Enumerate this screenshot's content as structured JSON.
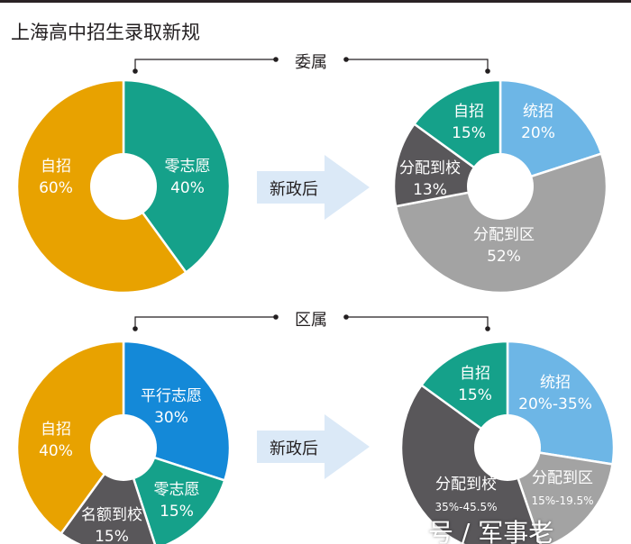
{
  "title": "上海高中招生录取新规",
  "arrow_label": "新政后",
  "watermark": "号 / 军事老",
  "sections": [
    {
      "label": "委属"
    },
    {
      "label": "区属"
    }
  ],
  "colors": {
    "orange": "#E8A200",
    "teal": "#15A18A",
    "light_blue": "#6DB6E6",
    "gray": "#A3A3A3",
    "dark_gray": "#59575A",
    "blue": "#1489D8"
  },
  "chart_data": [
    {
      "type": "pie",
      "donut": true,
      "section": "委属",
      "stage": "before",
      "slices": [
        {
          "label": "零志愿",
          "value": 40,
          "text": "40%",
          "color": "#15A18A"
        },
        {
          "label": "自招",
          "value": 60,
          "text": "60%",
          "color": "#E8A200"
        }
      ]
    },
    {
      "type": "pie",
      "donut": true,
      "section": "委属",
      "stage": "新政后",
      "slices": [
        {
          "label": "统招",
          "value": 20,
          "text": "20%",
          "color": "#6DB6E6"
        },
        {
          "label": "分配到区",
          "value": 52,
          "text": "52%",
          "color": "#A3A3A3"
        },
        {
          "label": "分配到校",
          "value": 13,
          "text": "13%",
          "color": "#59575A"
        },
        {
          "label": "自招",
          "value": 15,
          "text": "15%",
          "color": "#15A18A"
        }
      ]
    },
    {
      "type": "pie",
      "donut": true,
      "section": "区属",
      "stage": "before",
      "slices": [
        {
          "label": "平行志愿",
          "value": 30,
          "text": "30%",
          "color": "#1489D8"
        },
        {
          "label": "零志愿",
          "value": 15,
          "text": "15%",
          "color": "#15A18A"
        },
        {
          "label": "名额到校",
          "value": 15,
          "text": "15%",
          "color": "#59575A"
        },
        {
          "label": "自招",
          "value": 40,
          "text": "40%",
          "color": "#E8A200"
        }
      ]
    },
    {
      "type": "pie",
      "donut": true,
      "section": "区属",
      "stage": "新政后",
      "slices": [
        {
          "label": "统招",
          "range": [
            20,
            35
          ],
          "text": "20%-35%",
          "color": "#6DB6E6"
        },
        {
          "label": "分配到区",
          "range": [
            15,
            19.5
          ],
          "text": "15%-19.5%",
          "color": "#A3A3A3"
        },
        {
          "label": "分配到校",
          "range": [
            35,
            45.5
          ],
          "text": "35%-45.5%",
          "color": "#59575A"
        },
        {
          "label": "自招",
          "value": 15,
          "text": "15%",
          "color": "#15A18A"
        }
      ]
    }
  ]
}
